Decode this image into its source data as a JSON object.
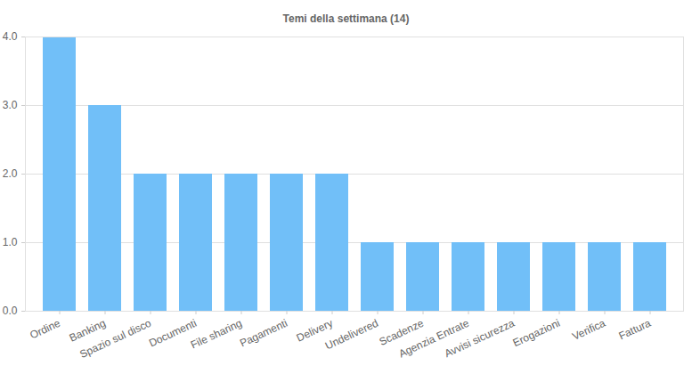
{
  "chart_data": {
    "type": "bar",
    "title": "Temi della settimana (14)",
    "categories": [
      "Ordine",
      "Banking",
      "Spazio sul disco",
      "Documenti",
      "File sharing",
      "Pagamenti",
      "Delivery",
      "Undelivered",
      "Scadenze",
      "Agenzia Entrate",
      "Avvisi sicurezza",
      "Erogazioni",
      "Verifica",
      "Fattura"
    ],
    "values": [
      4,
      3,
      2,
      2,
      2,
      2,
      2,
      1,
      1,
      1,
      1,
      1,
      1,
      1
    ],
    "color": "#71bff8",
    "ylim": [
      0,
      4
    ],
    "yticks": [
      0,
      1,
      2,
      3,
      4
    ],
    "grid": true
  }
}
